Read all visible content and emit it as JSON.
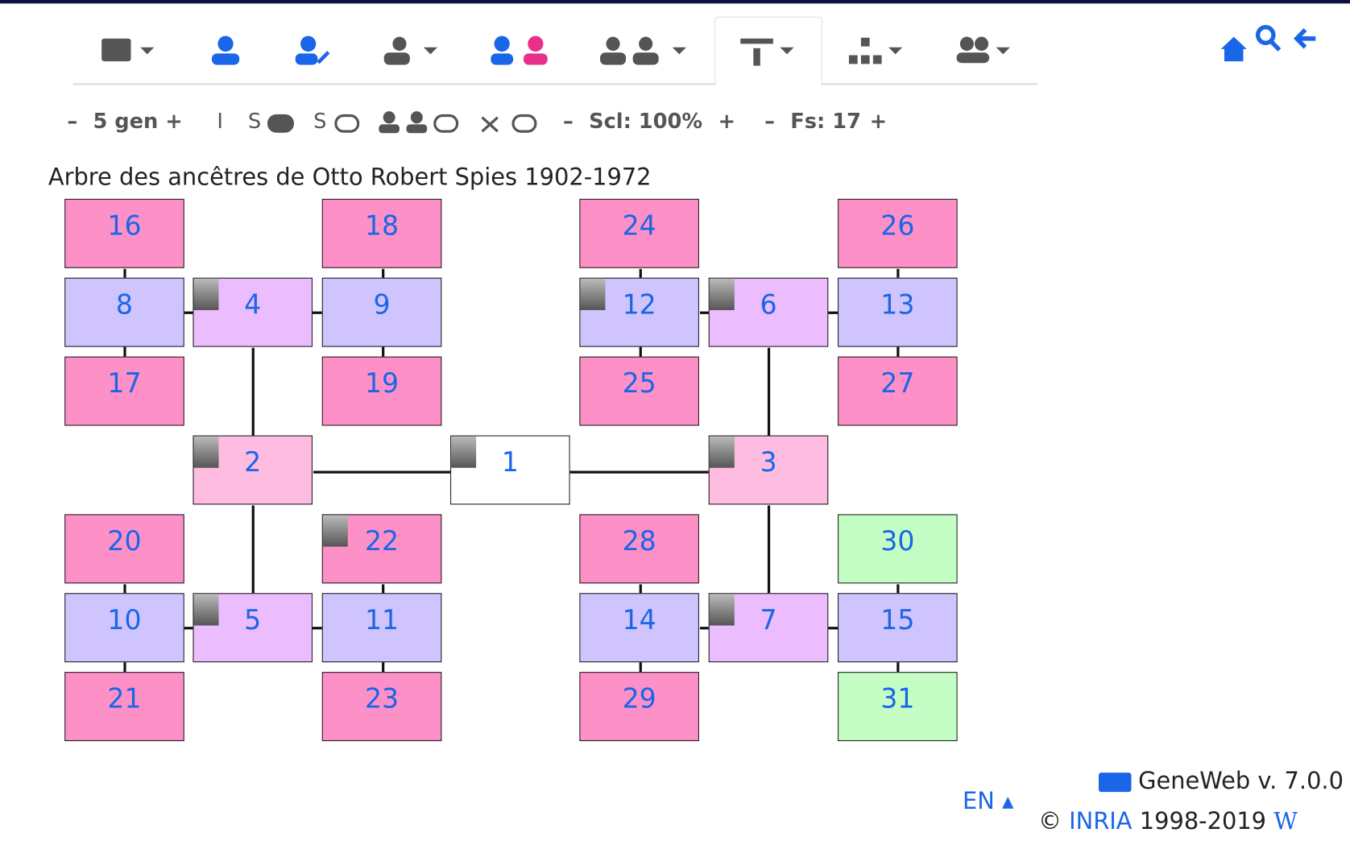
{
  "toolbar": {
    "minus": "–",
    "plus": "+",
    "generations": "5 gen",
    "implex": "I",
    "spouses": "S",
    "siblings": "S",
    "scale": "Scl: 100%",
    "font_size": "Fs: 17"
  },
  "title": "Arbre des ancêtres de Otto Robert Spies 1902-1972",
  "nodes": [
    {
      "number": "1"
    },
    {
      "number": "2"
    },
    {
      "number": "3"
    },
    {
      "number": "4"
    },
    {
      "number": "5"
    },
    {
      "number": "6"
    },
    {
      "number": "7"
    },
    {
      "number": "8"
    },
    {
      "number": "9"
    },
    {
      "number": "10"
    },
    {
      "number": "11"
    },
    {
      "number": "12"
    },
    {
      "number": "13"
    },
    {
      "number": "14"
    },
    {
      "number": "15"
    },
    {
      "number": "16"
    },
    {
      "number": "17"
    },
    {
      "number": "18"
    },
    {
      "number": "19"
    },
    {
      "number": "20"
    },
    {
      "number": "21"
    },
    {
      "number": "22"
    },
    {
      "number": "23"
    },
    {
      "number": "24"
    },
    {
      "number": "25"
    },
    {
      "number": "26"
    },
    {
      "number": "27"
    },
    {
      "number": "28"
    },
    {
      "number": "29"
    },
    {
      "number": "30"
    },
    {
      "number": "31"
    }
  ],
  "footer": {
    "language": "EN",
    "version": "GeneWeb v. 7.0.0",
    "copyright": "©",
    "inria": "INRIA",
    "years": "1998-2019"
  }
}
